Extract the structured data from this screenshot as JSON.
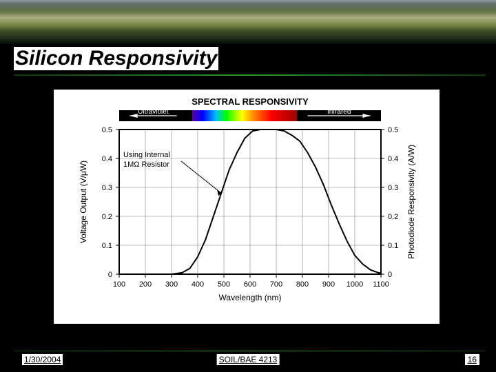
{
  "slide": {
    "title": "Silicon Responsivity",
    "date": "1/30/2004",
    "course": "SOIL/BAE 4213",
    "page_number": "16",
    "background_color": "#000000"
  },
  "chart": {
    "type": "line",
    "title": "SPECTRAL RESPONSIVITY",
    "title_fontsize": 13,
    "panel_bg": "#ffffff",
    "plot_bg": "#ffffff",
    "axis_color": "#000000",
    "grid_color": "#808080",
    "line_color": "#000000",
    "line_width": 2,
    "xlabel": "Wavelength (nm)",
    "ylabel_left": "Voltage Output (V/μW)",
    "ylabel_right": "Photodiode Responsivity (A/W)",
    "label_fontsize": 12,
    "tick_fontsize": 11,
    "xlim": [
      100,
      1100
    ],
    "xtick_step": 100,
    "xticks": [
      100,
      200,
      300,
      400,
      500,
      600,
      700,
      800,
      900,
      1000,
      1100
    ],
    "ylim": [
      0,
      0.5
    ],
    "ytick_step": 0.1,
    "yticks": [
      0,
      0.1,
      0.2,
      0.3,
      0.4,
      0.5
    ],
    "curve": [
      [
        300,
        0
      ],
      [
        340,
        0.005
      ],
      [
        370,
        0.02
      ],
      [
        400,
        0.06
      ],
      [
        430,
        0.12
      ],
      [
        460,
        0.2
      ],
      [
        490,
        0.28
      ],
      [
        520,
        0.36
      ],
      [
        550,
        0.42
      ],
      [
        580,
        0.47
      ],
      [
        610,
        0.495
      ],
      [
        640,
        0.5
      ],
      [
        670,
        0.5
      ],
      [
        700,
        0.5
      ],
      [
        730,
        0.495
      ],
      [
        760,
        0.48
      ],
      [
        790,
        0.46
      ],
      [
        820,
        0.42
      ],
      [
        850,
        0.37
      ],
      [
        880,
        0.31
      ],
      [
        910,
        0.24
      ],
      [
        940,
        0.175
      ],
      [
        970,
        0.115
      ],
      [
        1000,
        0.065
      ],
      [
        1030,
        0.035
      ],
      [
        1060,
        0.015
      ],
      [
        1090,
        0.005
      ],
      [
        1100,
        0.003
      ]
    ],
    "annotations": {
      "ultraviolet": "Ultraviolet",
      "infrared": "Infrared",
      "internal_resistor": "Using Internal 1MΩ Resistor"
    },
    "spectrum_band": {
      "x_start": 380,
      "x_end": 780,
      "stops": [
        {
          "x": 380,
          "color": "#5a00a8"
        },
        {
          "x": 420,
          "color": "#0000ff"
        },
        {
          "x": 470,
          "color": "#00c0ff"
        },
        {
          "x": 510,
          "color": "#00ff00"
        },
        {
          "x": 570,
          "color": "#ffff00"
        },
        {
          "x": 610,
          "color": "#ff9000"
        },
        {
          "x": 680,
          "color": "#ff0000"
        },
        {
          "x": 780,
          "color": "#a00000"
        }
      ]
    }
  }
}
